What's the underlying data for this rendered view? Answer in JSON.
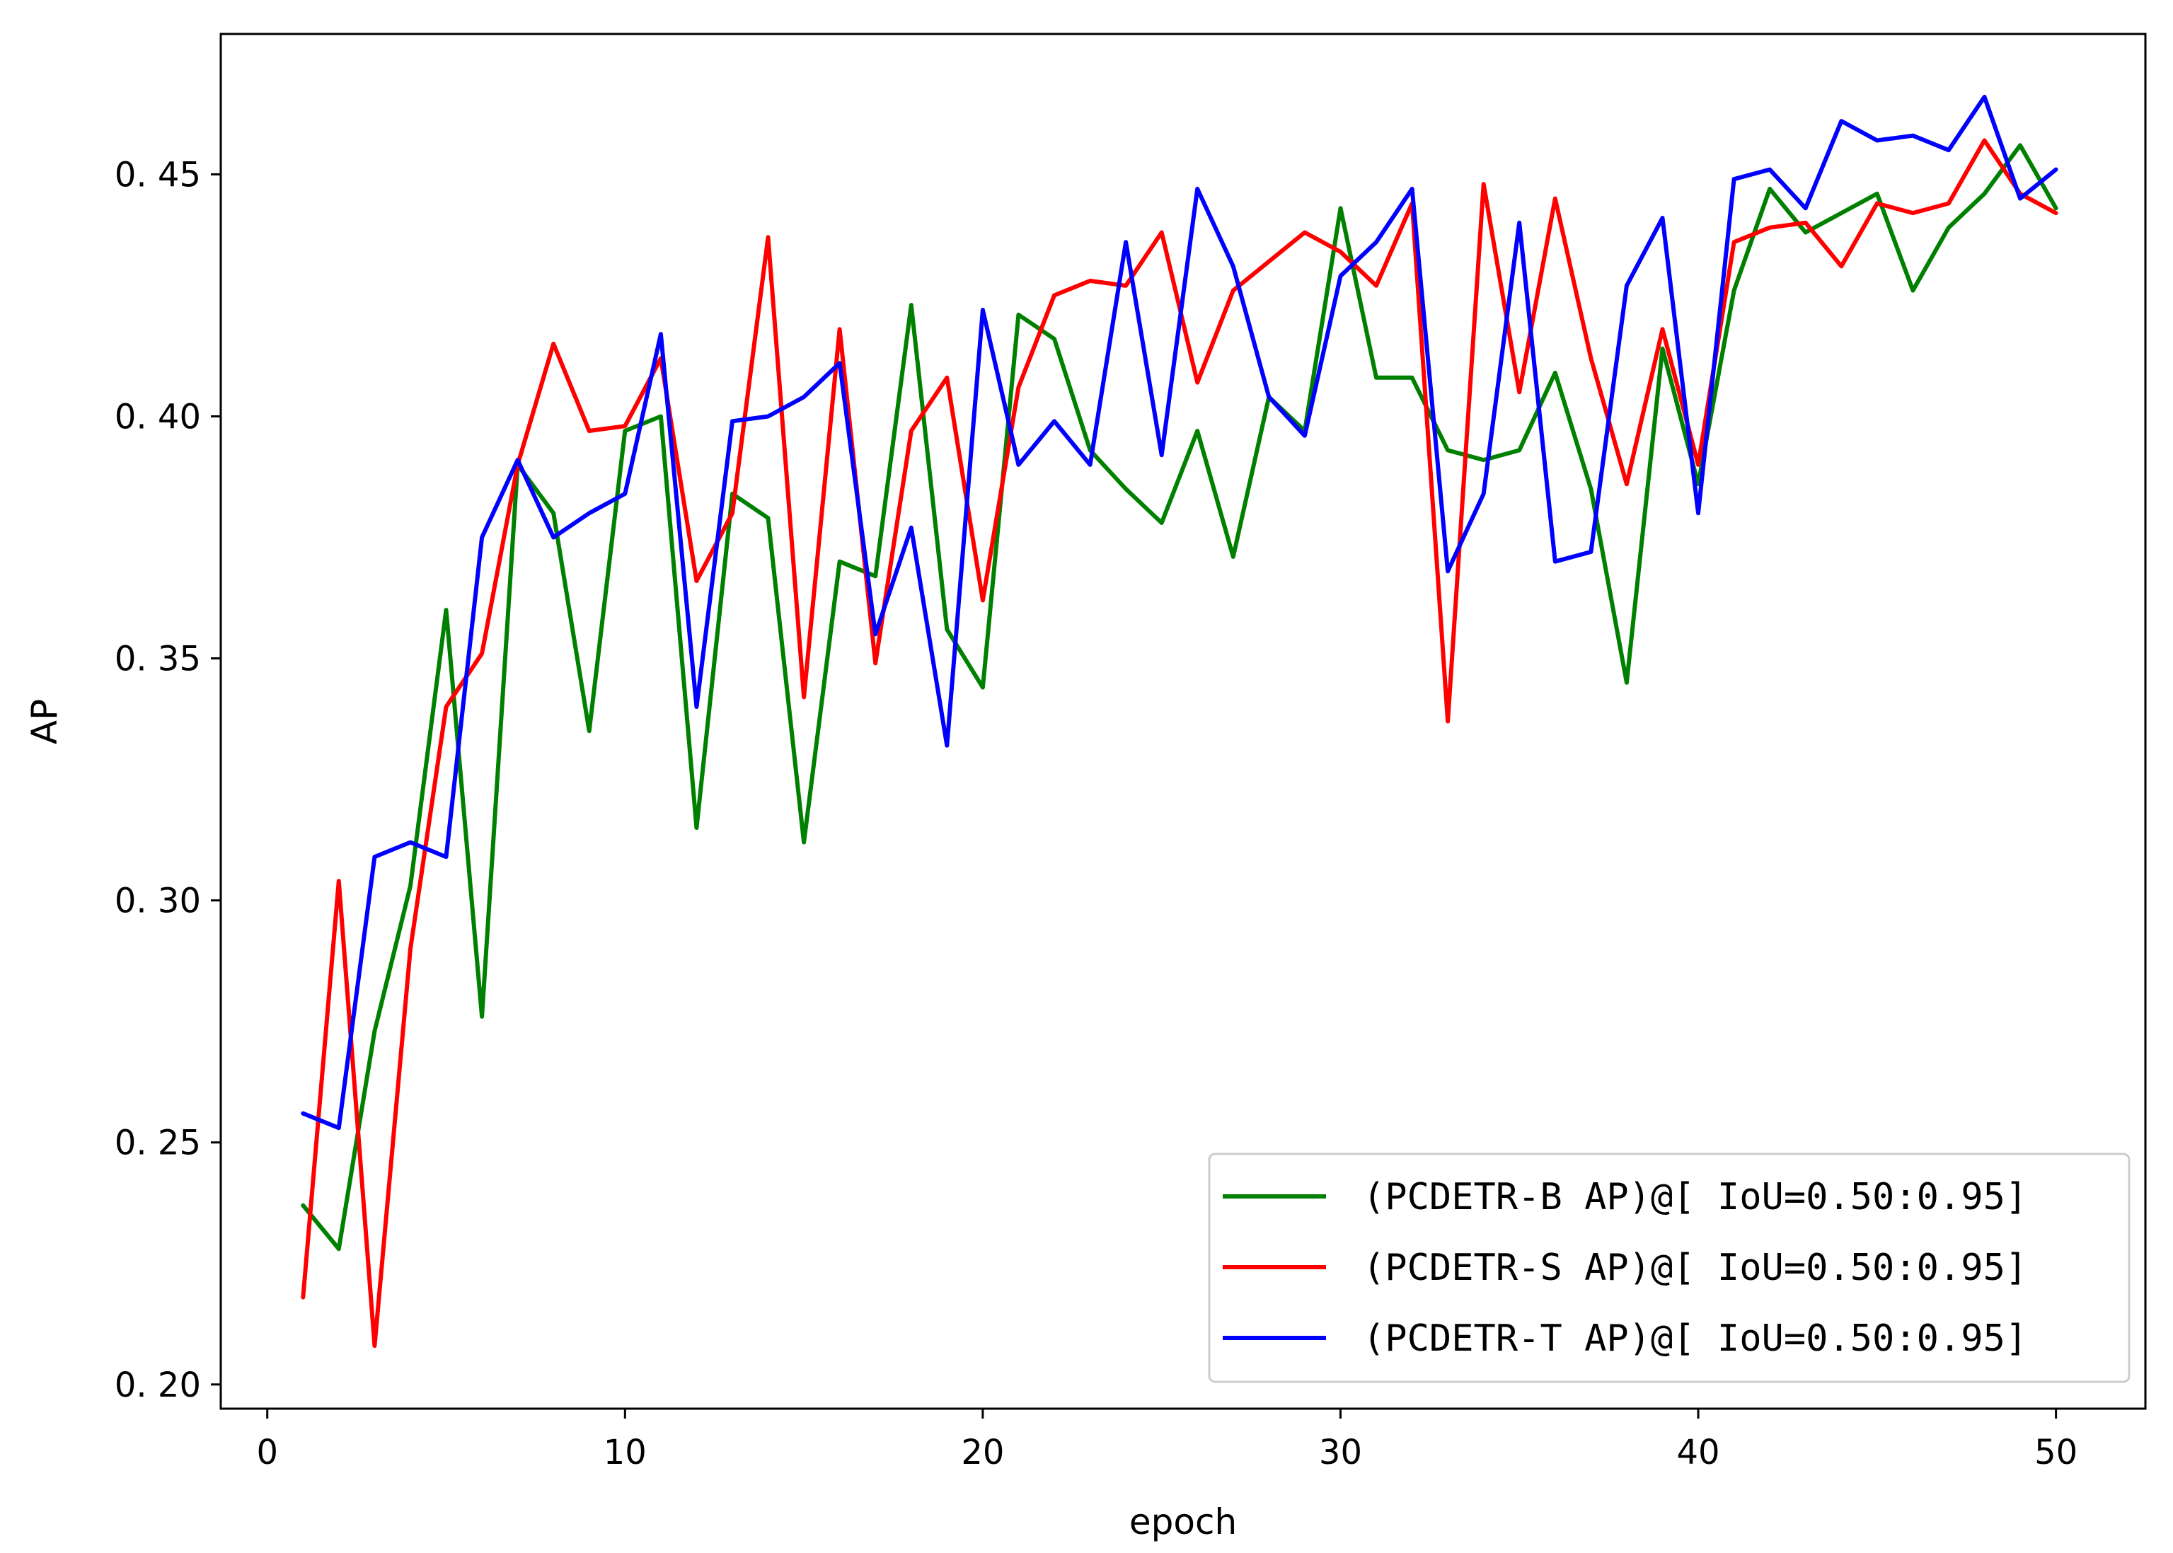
{
  "chart_data": {
    "type": "line",
    "title": "",
    "xlabel": "epoch",
    "ylabel": "AP",
    "xlim": [
      -1.3,
      52.5
    ],
    "ylim": [
      0.195,
      0.479
    ],
    "xticks": [
      0,
      10,
      20,
      30,
      40,
      50
    ],
    "xtick_labels": [
      "0",
      "10",
      "20",
      "30",
      "40",
      "50"
    ],
    "yticks": [
      0.2,
      0.25,
      0.3,
      0.35,
      0.4,
      0.45
    ],
    "ytick_labels": [
      "0. 20",
      "0. 25",
      "0. 30",
      "0. 35",
      "0. 40",
      "0. 45"
    ],
    "grid": false,
    "legend_position": "lower-right",
    "x": [
      1,
      2,
      3,
      4,
      5,
      6,
      7,
      8,
      9,
      10,
      11,
      12,
      13,
      14,
      15,
      16,
      17,
      18,
      19,
      20,
      21,
      22,
      23,
      24,
      25,
      26,
      27,
      28,
      29,
      30,
      31,
      32,
      33,
      34,
      35,
      36,
      37,
      38,
      39,
      40,
      41,
      42,
      43,
      44,
      45,
      46,
      47,
      48,
      49,
      50
    ],
    "series": [
      {
        "name": "(PCDETR-B AP)@[ IoU=0.50:0.95]",
        "color": "#008000",
        "values": [
          0.237,
          0.228,
          0.273,
          0.303,
          0.36,
          0.276,
          0.39,
          0.38,
          0.335,
          0.397,
          0.4,
          0.315,
          0.384,
          0.379,
          0.312,
          0.37,
          0.367,
          0.423,
          0.356,
          0.344,
          0.421,
          0.416,
          0.393,
          0.385,
          0.378,
          0.397,
          0.371,
          0.404,
          0.397,
          0.443,
          0.408,
          0.408,
          0.393,
          0.391,
          0.393,
          0.409,
          0.385,
          0.345,
          0.414,
          0.386,
          0.426,
          0.447,
          0.438,
          0.442,
          0.446,
          0.426,
          0.439,
          0.446,
          0.456,
          0.443
        ]
      },
      {
        "name": "(PCDETR-S AP)@[ IoU=0.50:0.95]",
        "color": "#ff0000",
        "values": [
          0.218,
          0.304,
          0.208,
          0.29,
          0.34,
          0.351,
          0.39,
          0.415,
          0.397,
          0.398,
          0.412,
          0.366,
          0.38,
          0.437,
          0.342,
          0.418,
          0.349,
          0.397,
          0.408,
          0.362,
          0.406,
          0.425,
          0.428,
          0.427,
          0.438,
          0.407,
          0.426,
          0.432,
          0.438,
          0.434,
          0.427,
          0.444,
          0.337,
          0.448,
          0.405,
          0.445,
          0.412,
          0.386,
          0.418,
          0.39,
          0.436,
          0.439,
          0.44,
          0.431,
          0.444,
          0.442,
          0.444,
          0.457,
          0.446,
          0.442
        ]
      },
      {
        "name": "(PCDETR-T AP)@[ IoU=0.50:0.95]",
        "color": "#0000ff",
        "values": [
          0.256,
          0.253,
          0.309,
          0.312,
          0.309,
          0.375,
          0.391,
          0.375,
          0.38,
          0.384,
          0.417,
          0.34,
          0.399,
          0.4,
          0.404,
          0.411,
          0.355,
          0.377,
          0.332,
          0.422,
          0.39,
          0.399,
          0.39,
          0.436,
          0.392,
          0.447,
          0.431,
          0.404,
          0.396,
          0.429,
          0.436,
          0.447,
          0.368,
          0.384,
          0.44,
          0.37,
          0.372,
          0.427,
          0.441,
          0.38,
          0.449,
          0.451,
          0.443,
          0.461,
          0.457,
          0.458,
          0.455,
          0.466,
          0.445,
          0.451
        ]
      }
    ]
  }
}
